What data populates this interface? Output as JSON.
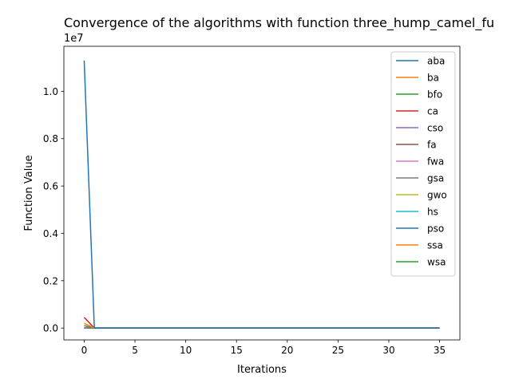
{
  "chart_data": {
    "type": "line",
    "title": "Convergence of the algorithms with function three_hump_camel_fu",
    "xlabel": "Iterations",
    "ylabel": "Function Value",
    "y_offset_label": "1e7",
    "xlim": [
      -2,
      37
    ],
    "ylim": [
      -0.05,
      1.19
    ],
    "x_ticks": [
      0,
      5,
      10,
      15,
      20,
      25,
      30,
      35
    ],
    "y_ticks": [
      0.0,
      0.2,
      0.4,
      0.6,
      0.8,
      1.0
    ],
    "y_tick_labels": [
      "0.0",
      "0.2",
      "0.4",
      "0.6",
      "0.8",
      "1.0"
    ],
    "grid": false,
    "legend_position": "top-right",
    "x": [
      0,
      1,
      35
    ],
    "series": [
      {
        "name": "aba",
        "color": "#1f77b4",
        "values": [
          1.13,
          0.0,
          0.0
        ]
      },
      {
        "name": "ba",
        "color": "#ff7f0e",
        "values": [
          0.02,
          0.0,
          0.0
        ]
      },
      {
        "name": "bfo",
        "color": "#2ca02c",
        "values": [
          0.01,
          0.0,
          0.0
        ]
      },
      {
        "name": "ca",
        "color": "#d62728",
        "values": [
          0.045,
          0.0,
          0.0
        ]
      },
      {
        "name": "cso",
        "color": "#9467bd",
        "values": [
          0.0,
          0.0,
          0.0
        ]
      },
      {
        "name": "fa",
        "color": "#8c564b",
        "values": [
          0.0,
          0.0,
          0.0
        ]
      },
      {
        "name": "fwa",
        "color": "#e377c2",
        "values": [
          0.0,
          0.0,
          0.0
        ]
      },
      {
        "name": "gsa",
        "color": "#7f7f7f",
        "values": [
          0.0,
          0.0,
          0.0
        ]
      },
      {
        "name": "gwo",
        "color": "#bcbd22",
        "values": [
          0.0,
          0.0,
          0.0
        ]
      },
      {
        "name": "hs",
        "color": "#17becf",
        "values": [
          0.0,
          0.0,
          0.0
        ]
      },
      {
        "name": "pso",
        "color": "#1f77b4",
        "values": [
          0.0,
          0.0,
          0.0
        ]
      },
      {
        "name": "ssa",
        "color": "#ff7f0e",
        "values": [
          0.0,
          0.0,
          0.0
        ]
      },
      {
        "name": "wsa",
        "color": "#2ca02c",
        "values": [
          0.01,
          0.0,
          0.0
        ]
      }
    ]
  }
}
